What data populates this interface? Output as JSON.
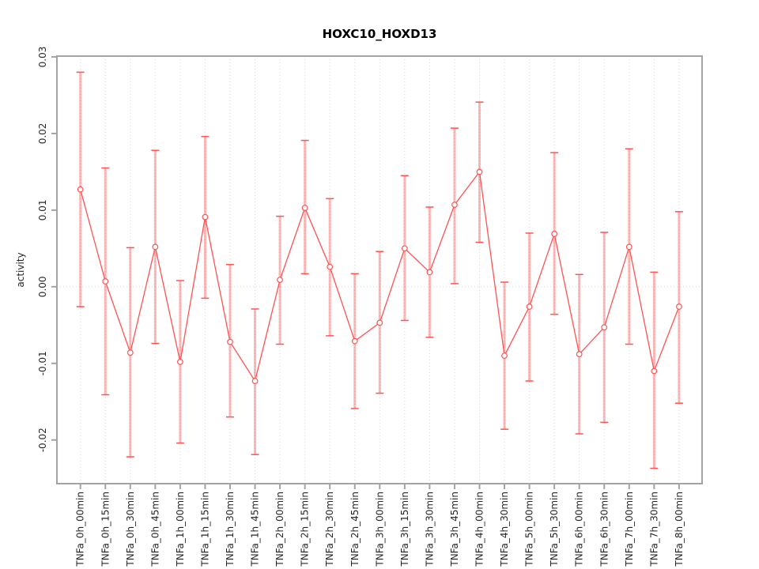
{
  "title": "HOXC10_HOXD13",
  "chart_data": {
    "type": "line",
    "title": "HOXC10_HOXD13",
    "xlabel": "",
    "ylabel": "activity",
    "ylim": [
      -0.0257,
      0.0301
    ],
    "yticks": [
      -0.02,
      -0.01,
      0.0,
      0.01,
      0.02,
      0.03
    ],
    "ytick_labels": [
      "-0.02",
      "-0.01",
      "0.00",
      "0.01",
      "0.02",
      "0.03"
    ],
    "grid": "dotted vertical line at each category; dotted horizontal line at y=0",
    "legend": "none",
    "marker": "open-circle",
    "categories": [
      "TNFa_0h_00min",
      "TNFa_0h_15min",
      "TNFa_0h_30min",
      "TNFa_0h_45min",
      "TNFa_1h_00min",
      "TNFa_1h_15min",
      "TNFa_1h_30min",
      "TNFa_1h_45min",
      "TNFa_2h_00min",
      "TNFa_2h_15min",
      "TNFa_2h_30min",
      "TNFa_2h_45min",
      "TNFa_3h_00min",
      "TNFa_3h_15min",
      "TNFa_3h_30min",
      "TNFa_3h_45min",
      "TNFa_4h_00min",
      "TNFa_4h_30min",
      "TNFa_5h_00min",
      "TNFa_5h_30min",
      "TNFa_6h_00min",
      "TNFa_6h_30min",
      "TNFa_7h_00min",
      "TNFa_7h_30min",
      "TNFa_8h_00min"
    ],
    "series": [
      {
        "name": "activity",
        "values": [
          0.0127,
          0.0007,
          -0.0086,
          0.0052,
          -0.0098,
          0.0091,
          -0.0072,
          -0.0123,
          0.0009,
          0.0103,
          0.0026,
          -0.0071,
          -0.0047,
          0.005,
          0.0019,
          0.0107,
          0.015,
          -0.009,
          -0.0026,
          0.0069,
          -0.0088,
          -0.0053,
          0.0052,
          -0.011,
          -0.0026
        ],
        "error_high": [
          0.028,
          0.0155,
          0.0051,
          0.0178,
          0.0008,
          0.0196,
          0.0029,
          -0.0029,
          0.0092,
          0.0191,
          0.0115,
          0.0017,
          0.0046,
          0.0145,
          0.0104,
          0.0207,
          0.0241,
          0.0006,
          0.007,
          0.0175,
          0.0016,
          0.0071,
          0.018,
          0.0019,
          0.0098
        ],
        "error_low": [
          -0.0026,
          -0.0141,
          -0.0222,
          -0.0074,
          -0.0204,
          -0.0015,
          -0.017,
          -0.0219,
          -0.0075,
          0.0017,
          -0.0064,
          -0.0159,
          -0.0139,
          -0.0044,
          -0.0066,
          0.0004,
          0.0058,
          -0.0186,
          -0.0123,
          -0.0036,
          -0.0192,
          -0.0177,
          -0.0075,
          -0.0237,
          -0.0152
        ]
      }
    ],
    "colors": {
      "line": "#ff5252",
      "error_shaft": "rgba(255,82,82,0.42)",
      "axis": "#a3a3a3",
      "grid": "#d6d6d6",
      "text": "#262626",
      "title": "#000000",
      "background": "#ffffff"
    }
  }
}
